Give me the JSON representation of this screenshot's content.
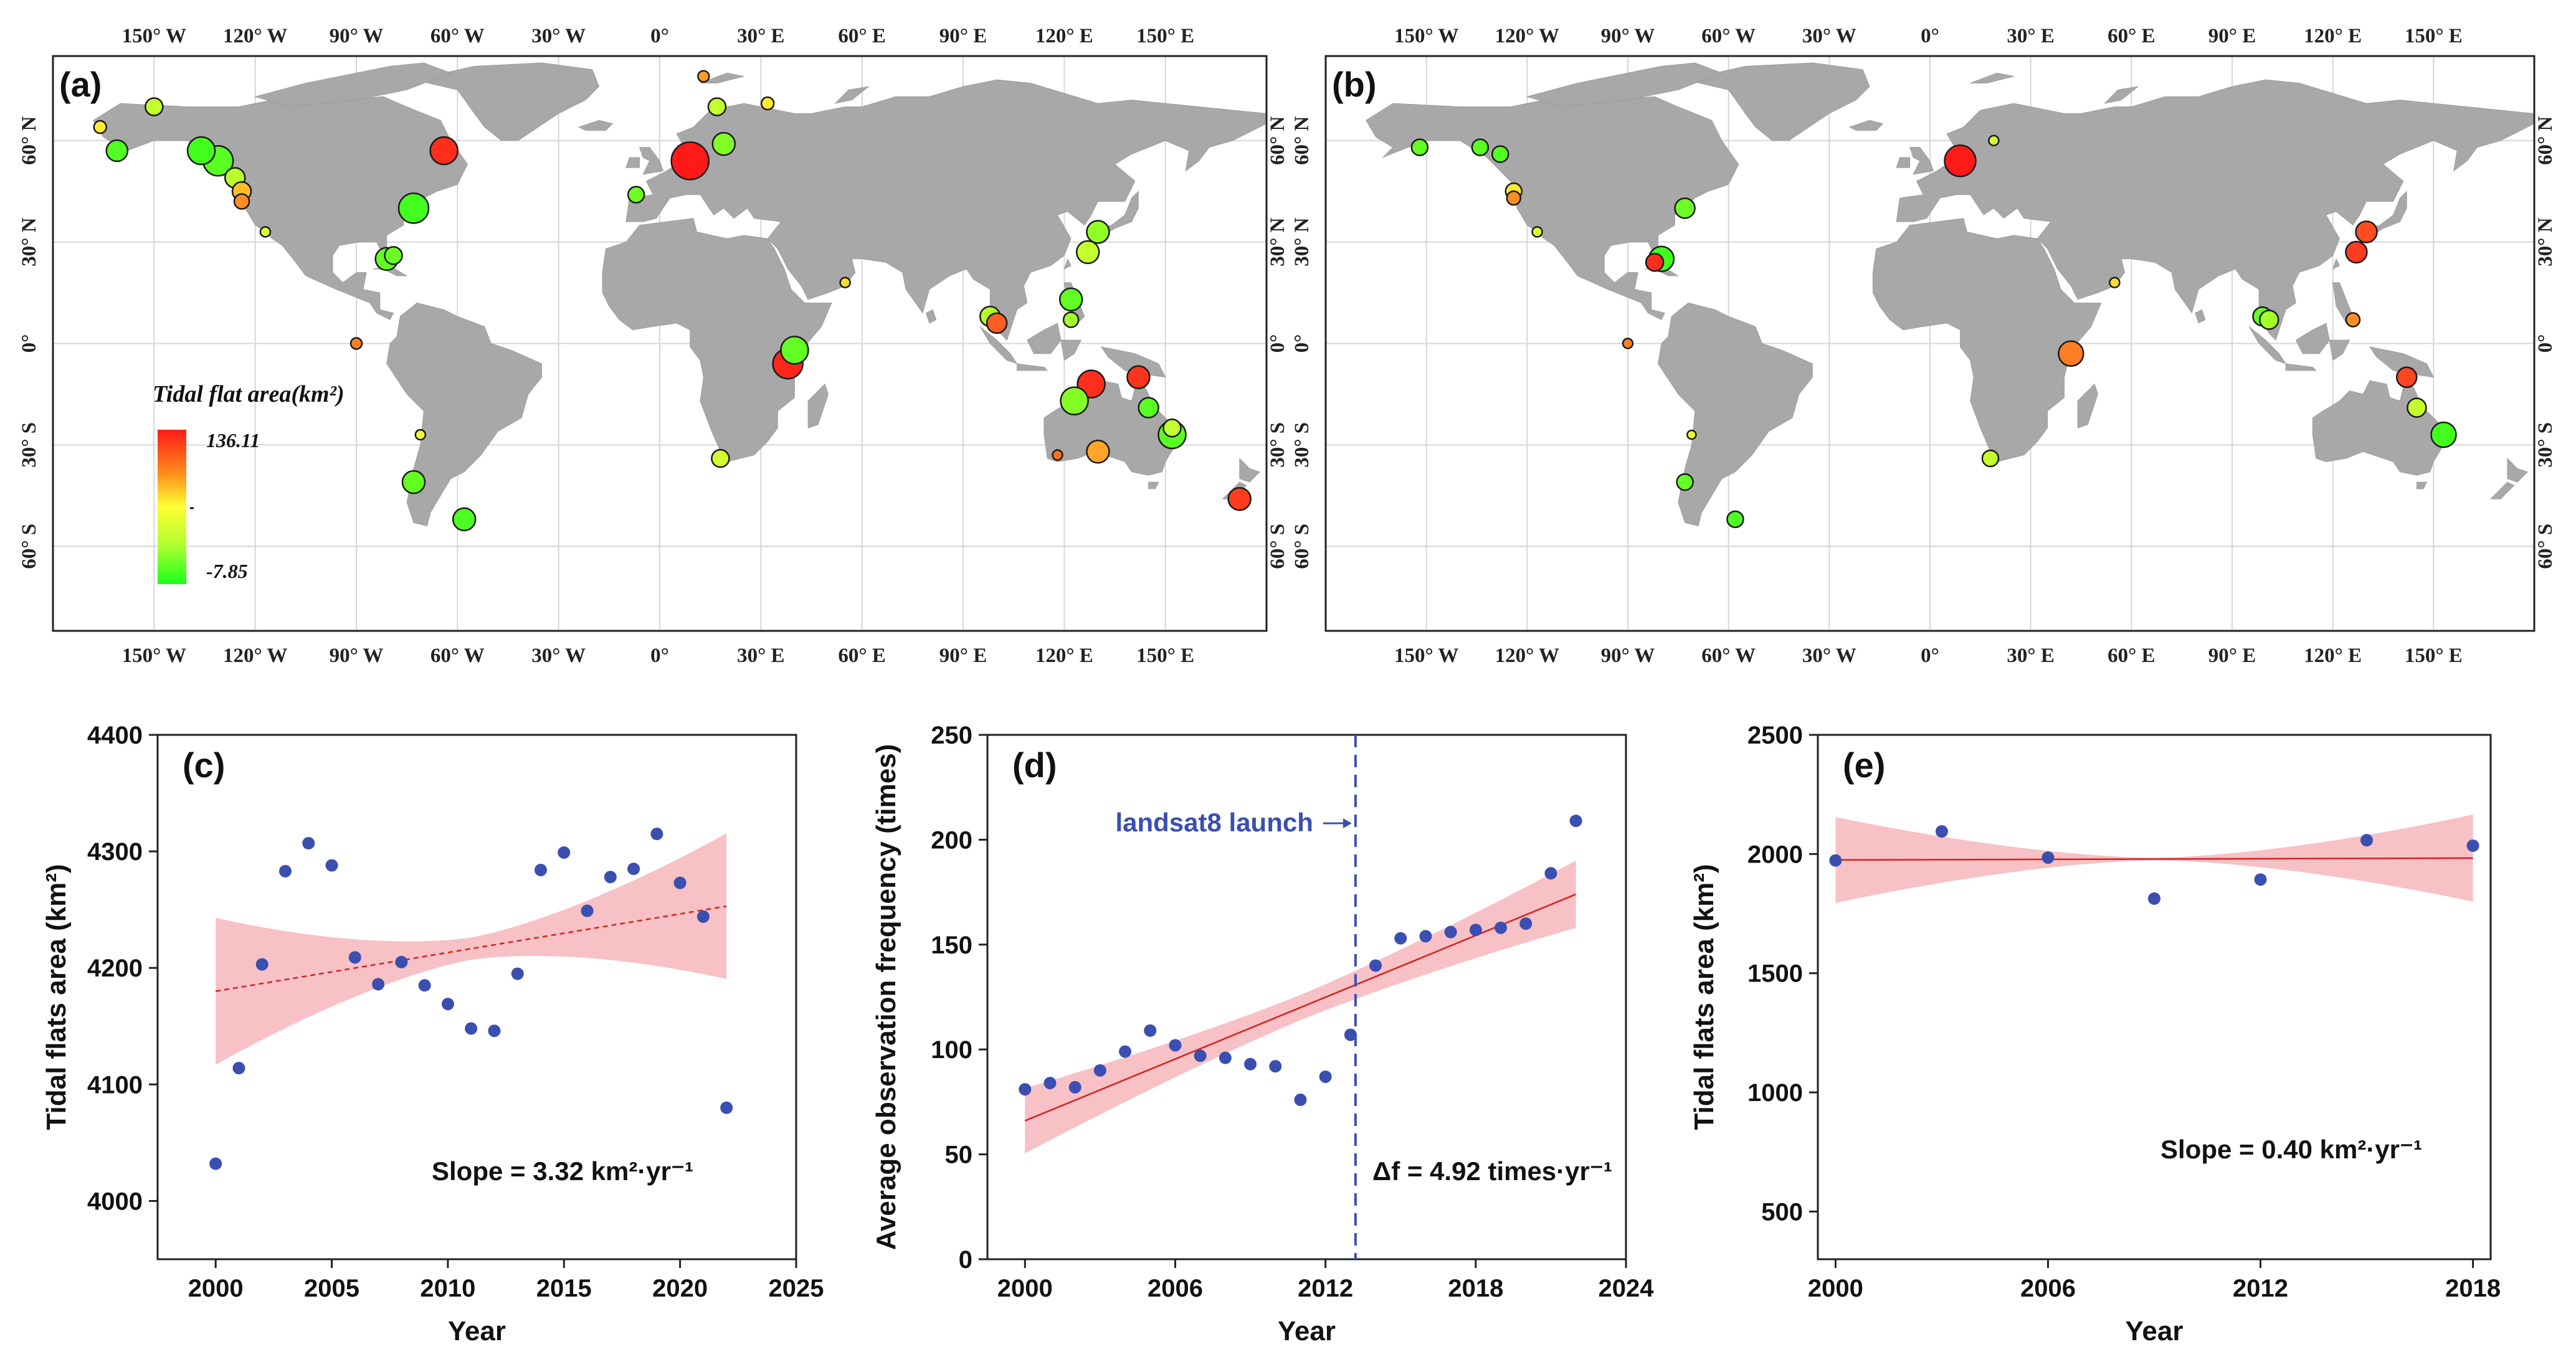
{
  "colors": {
    "land": "#a8a8a8",
    "grid": "#d6d6d6",
    "axis": "#222222",
    "point": "#3a4fb0",
    "band": "#f7c1c5",
    "fit": "#d62020",
    "launch": "#3a4fb0",
    "cmap_high": "#ff1a1a",
    "cmap_mid": "#ffff33",
    "cmap_low": "#1aff1a"
  },
  "maps": {
    "lon_ticks_top": [
      "150° W",
      "120° W",
      "90° W",
      "60° W",
      "30° W",
      "0°",
      "30° E",
      "60° E",
      "90° E",
      "120° E",
      "150° E"
    ],
    "lon_ticks_bottom": [
      "150° W",
      "120° W",
      "90° W",
      "60° W",
      "30° W",
      "0°",
      "30° E",
      "60° E",
      "90° E",
      "120° E",
      "150° E"
    ],
    "lat_ticks": [
      "60° N",
      "30° N",
      "0°",
      "30° S",
      "60° S"
    ],
    "legend_title": "Tidal flat area(km²)",
    "legend_max": "136.11",
    "legend_min": "-7.85",
    "panel_a": {
      "label": "(a)",
      "sites": [
        {
          "lon": -166,
          "lat": 64,
          "v": 70,
          "s": 10
        },
        {
          "lon": -150,
          "lat": 70,
          "v": 45,
          "s": 14
        },
        {
          "lon": -161,
          "lat": 57,
          "v": 10,
          "s": 17
        },
        {
          "lon": -136,
          "lat": 57,
          "v": 5,
          "s": 22
        },
        {
          "lon": -131,
          "lat": 54,
          "v": 12,
          "s": 24
        },
        {
          "lon": -126,
          "lat": 49,
          "v": 42,
          "s": 16
        },
        {
          "lon": -124,
          "lat": 45,
          "v": 85,
          "s": 15
        },
        {
          "lon": -124,
          "lat": 42,
          "v": 100,
          "s": 12
        },
        {
          "lon": -117,
          "lat": 33,
          "v": 55,
          "s": 8
        },
        {
          "lon": -73,
          "lat": 40,
          "v": 5,
          "s": 24
        },
        {
          "lon": -81,
          "lat": 25,
          "v": 15,
          "s": 18
        },
        {
          "lon": -79,
          "lat": 26,
          "v": 18,
          "s": 14
        },
        {
          "lon": -64,
          "lat": 57,
          "v": 130,
          "s": 22
        },
        {
          "lon": -90,
          "lat": 0,
          "v": 105,
          "s": 9
        },
        {
          "lon": -71,
          "lat": -27,
          "v": 60,
          "s": 8
        },
        {
          "lon": -73,
          "lat": -41,
          "v": 15,
          "s": 18
        },
        {
          "lon": -58,
          "lat": -52,
          "v": 8,
          "s": 18
        },
        {
          "lon": -7,
          "lat": 44,
          "v": 18,
          "s": 13
        },
        {
          "lon": 9,
          "lat": 54,
          "v": 136,
          "s": 30
        },
        {
          "lon": 13,
          "lat": 79,
          "v": 95,
          "s": 9
        },
        {
          "lon": 17,
          "lat": 70,
          "v": 45,
          "s": 14
        },
        {
          "lon": 19,
          "lat": 59,
          "v": 25,
          "s": 18
        },
        {
          "lon": 32,
          "lat": 71,
          "v": 70,
          "s": 10
        },
        {
          "lon": 40,
          "lat": -2,
          "v": 15,
          "s": 22
        },
        {
          "lon": 38,
          "lat": -6,
          "v": 132,
          "s": 24
        },
        {
          "lon": 55,
          "lat": 18,
          "v": 75,
          "s": 8
        },
        {
          "lon": 18,
          "lat": -34,
          "v": 50,
          "s": 14
        },
        {
          "lon": 98,
          "lat": 8,
          "v": 40,
          "s": 16
        },
        {
          "lon": 100,
          "lat": 6,
          "v": 115,
          "s": 16
        },
        {
          "lon": 122,
          "lat": 13,
          "v": 15,
          "s": 18
        },
        {
          "lon": 122,
          "lat": 7,
          "v": 35,
          "s": 12
        },
        {
          "lon": 130,
          "lat": 33,
          "v": 30,
          "s": 18
        },
        {
          "lon": 127,
          "lat": 27,
          "v": 45,
          "s": 18
        },
        {
          "lon": 142,
          "lat": -10,
          "v": 128,
          "s": 18
        },
        {
          "lon": 128,
          "lat": -12,
          "v": 130,
          "s": 22
        },
        {
          "lon": 123,
          "lat": -17,
          "v": 25,
          "s": 22
        },
        {
          "lon": 145,
          "lat": -19,
          "v": 12,
          "s": 16
        },
        {
          "lon": 152,
          "lat": -25,
          "v": 45,
          "s": 14
        },
        {
          "lon": 152,
          "lat": -27,
          "v": 12,
          "s": 22
        },
        {
          "lon": 130,
          "lat": -32,
          "v": 92,
          "s": 18
        },
        {
          "lon": 118,
          "lat": -33,
          "v": 110,
          "s": 8
        },
        {
          "lon": 172,
          "lat": -46,
          "v": 125,
          "s": 18
        }
      ]
    },
    "panel_b": {
      "label": "(b)",
      "sites": [
        {
          "lon": -152,
          "lat": 58,
          "v": 15,
          "s": 13
        },
        {
          "lon": -134,
          "lat": 58,
          "v": 12,
          "s": 13
        },
        {
          "lon": -128,
          "lat": 56,
          "v": 10,
          "s": 13
        },
        {
          "lon": -124,
          "lat": 45,
          "v": 70,
          "s": 13
        },
        {
          "lon": -124,
          "lat": 43,
          "v": 100,
          "s": 11
        },
        {
          "lon": -117,
          "lat": 33,
          "v": 55,
          "s": 8
        },
        {
          "lon": -73,
          "lat": 40,
          "v": 18,
          "s": 16
        },
        {
          "lon": -80,
          "lat": 25,
          "v": 5,
          "s": 20
        },
        {
          "lon": -82,
          "lat": 24,
          "v": 130,
          "s": 14
        },
        {
          "lon": -90,
          "lat": 0,
          "v": 105,
          "s": 8
        },
        {
          "lon": -71,
          "lat": -27,
          "v": 60,
          "s": 7
        },
        {
          "lon": -73,
          "lat": -41,
          "v": 15,
          "s": 13
        },
        {
          "lon": -58,
          "lat": -52,
          "v": 8,
          "s": 13
        },
        {
          "lon": 9,
          "lat": 54,
          "v": 136,
          "s": 25
        },
        {
          "lon": 19,
          "lat": 60,
          "v": 50,
          "s": 8
        },
        {
          "lon": 42,
          "lat": -3,
          "v": 105,
          "s": 20
        },
        {
          "lon": 55,
          "lat": 18,
          "v": 75,
          "s": 8
        },
        {
          "lon": 18,
          "lat": -34,
          "v": 45,
          "s": 13
        },
        {
          "lon": 99,
          "lat": 8,
          "v": 15,
          "s": 15
        },
        {
          "lon": 101,
          "lat": 7,
          "v": 35,
          "s": 15
        },
        {
          "lon": 130,
          "lat": 33,
          "v": 120,
          "s": 17
        },
        {
          "lon": 127,
          "lat": 27,
          "v": 125,
          "s": 17
        },
        {
          "lon": 126,
          "lat": 7,
          "v": 100,
          "s": 11
        },
        {
          "lon": 142,
          "lat": -10,
          "v": 122,
          "s": 16
        },
        {
          "lon": 145,
          "lat": -19,
          "v": 45,
          "s": 15
        },
        {
          "lon": 153,
          "lat": -27,
          "v": 5,
          "s": 20
        }
      ]
    }
  },
  "chart_data": [
    {
      "type": "scatter",
      "label": "(c)",
      "xlabel": "Year",
      "ylabel": "Tidal flats area (km²)",
      "xlim": [
        1997.5,
        2025
      ],
      "ylim": [
        3950,
        4400
      ],
      "xticks": [
        2000,
        2005,
        2010,
        2015,
        2020,
        2025
      ],
      "yticks": [
        4000,
        4100,
        4200,
        4300,
        4400
      ],
      "x": [
        2000,
        2001,
        2002,
        2003,
        2004,
        2005,
        2006,
        2007,
        2008,
        2009,
        2010,
        2011,
        2012,
        2013,
        2014,
        2015,
        2016,
        2017,
        2018,
        2019,
        2020,
        2021,
        2022
      ],
      "y": [
        4032,
        4114,
        4203,
        4283,
        4307,
        4288,
        4209,
        4186,
        4205,
        4185,
        4169,
        4148,
        4146,
        4195,
        4284,
        4299,
        4249,
        4278,
        4285,
        4315,
        4273,
        4244,
        4080
      ],
      "fit": {
        "x": [
          2000,
          2022
        ],
        "y": [
          4180,
          4253
        ],
        "band_lo": [
          4117,
          4191
        ],
        "band_hi": [
          4243,
          4316
        ],
        "band_mid": [
          4193,
          4212
        ],
        "style": "dashed"
      },
      "annotation": "Slope = 3.32 km²·yr⁻¹"
    },
    {
      "type": "scatter",
      "label": "(d)",
      "xlabel": "Year",
      "ylabel": "Average observation frequency (times)",
      "xlim": [
        1998.5,
        2024
      ],
      "ylim": [
        0,
        250
      ],
      "xticks": [
        2000,
        2006,
        2012,
        2018,
        2024
      ],
      "yticks": [
        0,
        50,
        100,
        150,
        200,
        250
      ],
      "x": [
        2000,
        2001,
        2002,
        2003,
        2004,
        2005,
        2006,
        2007,
        2008,
        2009,
        2010,
        2011,
        2012,
        2013,
        2014,
        2015,
        2016,
        2017,
        2018,
        2019,
        2020,
        2021,
        2022
      ],
      "y": [
        81,
        84,
        82,
        90,
        99,
        109,
        102,
        97,
        96,
        93,
        92,
        76,
        87,
        107,
        140,
        153,
        154,
        156,
        157,
        158,
        160,
        184,
        209
      ],
      "fit": {
        "x": [
          2000,
          2022
        ],
        "y": [
          66,
          174
        ],
        "band_lo": [
          51,
          158
        ],
        "band_hi": [
          82,
          190
        ],
        "band_mid": [
          114,
          126
        ],
        "style": "solid"
      },
      "launch_year": 2013.2,
      "launch_label": "landsat8 launch",
      "annotation": "Δf = 4.92 times·yr⁻¹"
    },
    {
      "type": "scatter",
      "label": "(e)",
      "xlabel": "Year",
      "ylabel": "Tidal flats area (km²)",
      "xlim": [
        1999.5,
        2018.5
      ],
      "ylim": [
        300,
        2500
      ],
      "xticks": [
        2000,
        2006,
        2012,
        2018
      ],
      "yticks": [
        500,
        1000,
        1500,
        2000,
        2500
      ],
      "x": [
        2000,
        2003,
        2006,
        2009,
        2012,
        2015,
        2018
      ],
      "y": [
        1973,
        2095,
        1985,
        1813,
        1893,
        2058,
        2035
      ],
      "fit": {
        "x": [
          2000,
          2018
        ],
        "y": [
          1975,
          1983
        ],
        "band_lo": [
          1795,
          1800
        ],
        "band_hi": [
          2155,
          2165
        ],
        "band_mid": [
          1940,
          1950
        ],
        "style": "solid"
      },
      "annotation": "Slope = 0.40 km²·yr⁻¹"
    }
  ]
}
